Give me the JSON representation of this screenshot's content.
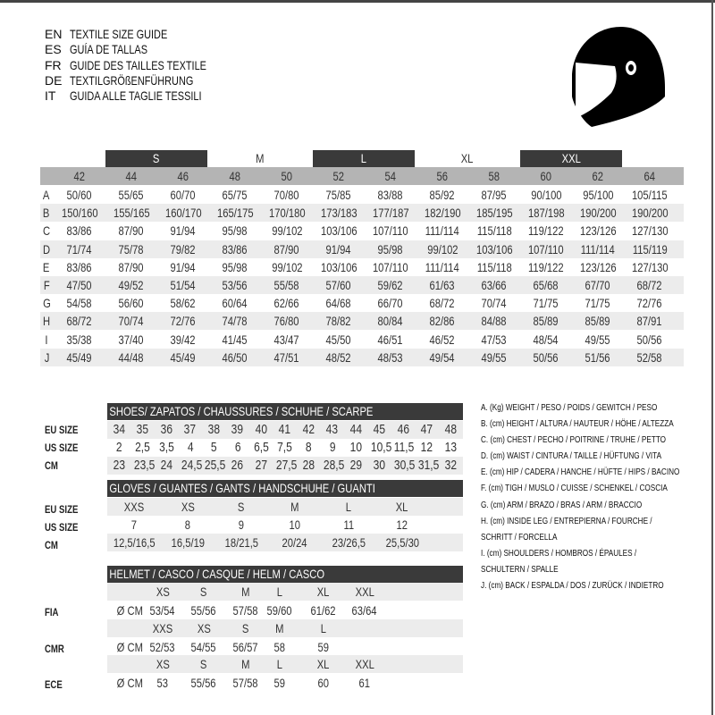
{
  "titles": [
    {
      "code": "EN",
      "text": "TEXTILE SIZE GUIDE"
    },
    {
      "code": "ES",
      "text": "GUÍA DE TALLAS"
    },
    {
      "code": "FR",
      "text": "GUIDE DES TAILLES TEXTILE"
    },
    {
      "code": "DE",
      "text": "TEXTILGRÖßENFÜHRUNG"
    },
    {
      "code": "IT",
      "text": "GUIDA ALLE TAGLIE TESSILI"
    }
  ],
  "icon": "helmet-icon",
  "textile": {
    "size_groups": [
      "S",
      "M",
      "L",
      "XL",
      "XXL"
    ],
    "sizes": [
      "42",
      "44",
      "46",
      "48",
      "50",
      "52",
      "54",
      "56",
      "58",
      "60",
      "62",
      "64"
    ],
    "rows": [
      {
        "label": "A",
        "values": [
          "50/60",
          "55/65",
          "60/70",
          "65/75",
          "70/80",
          "75/85",
          "83/88",
          "85/92",
          "87/95",
          "90/100",
          "95/100",
          "105/115"
        ]
      },
      {
        "label": "B",
        "values": [
          "150/160",
          "155/165",
          "160/170",
          "165/175",
          "170/180",
          "173/183",
          "177/187",
          "182/190",
          "185/195",
          "187/198",
          "190/200",
          "190/200"
        ]
      },
      {
        "label": "C",
        "values": [
          "83/86",
          "87/90",
          "91/94",
          "95/98",
          "99/102",
          "103/106",
          "107/110",
          "111/114",
          "115/118",
          "119/122",
          "123/126",
          "127/130"
        ]
      },
      {
        "label": "D",
        "values": [
          "71/74",
          "75/78",
          "79/82",
          "83/86",
          "87/90",
          "91/94",
          "95/98",
          "99/102",
          "103/106",
          "107/110",
          "111/114",
          "115/119"
        ]
      },
      {
        "label": "E",
        "values": [
          "83/86",
          "87/90",
          "91/94",
          "95/98",
          "99/102",
          "103/106",
          "107/110",
          "111/114",
          "115/118",
          "119/122",
          "123/126",
          "127/130"
        ]
      },
      {
        "label": "F",
        "values": [
          "47/50",
          "49/52",
          "51/54",
          "53/56",
          "55/58",
          "57/60",
          "59/62",
          "61/63",
          "63/66",
          "65/68",
          "67/70",
          "68/72"
        ]
      },
      {
        "label": "G",
        "values": [
          "54/58",
          "56/60",
          "58/62",
          "60/64",
          "62/66",
          "64/68",
          "66/70",
          "68/72",
          "70/74",
          "71/75",
          "71/75",
          "72/76"
        ]
      },
      {
        "label": "H",
        "values": [
          "68/72",
          "70/74",
          "72/76",
          "74/78",
          "76/80",
          "78/82",
          "80/84",
          "82/86",
          "84/88",
          "85/89",
          "85/89",
          "87/91"
        ]
      },
      {
        "label": "I",
        "values": [
          "35/38",
          "37/40",
          "39/42",
          "41/45",
          "43/47",
          "45/50",
          "46/51",
          "46/52",
          "47/53",
          "48/54",
          "49/55",
          "50/56"
        ]
      },
      {
        "label": "J",
        "values": [
          "45/49",
          "44/48",
          "45/49",
          "46/50",
          "47/51",
          "48/52",
          "48/53",
          "49/54",
          "49/55",
          "50/56",
          "51/56",
          "52/58"
        ]
      }
    ]
  },
  "shoes": {
    "title": "SHOES/ ZAPATOS / CHAUSSURES / SCHUHE / SCARPE",
    "rows": [
      {
        "label": "EU SIZE",
        "values": [
          "34",
          "35",
          "36",
          "37",
          "38",
          "39",
          "40",
          "41",
          "42",
          "43",
          "44",
          "45",
          "46",
          "47",
          "48"
        ]
      },
      {
        "label": "US SIZE",
        "values": [
          "2",
          "2,5",
          "3,5",
          "4",
          "5",
          "6",
          "6,5",
          "7,5",
          "8",
          "9",
          "10",
          "10,5",
          "11,5",
          "12",
          "13"
        ]
      },
      {
        "label": "CM",
        "values": [
          "23",
          "23,5",
          "24",
          "24,5",
          "25,5",
          "26",
          "27",
          "27,5",
          "28",
          "28,5",
          "29",
          "30",
          "30,5",
          "31,5",
          "32"
        ]
      }
    ]
  },
  "gloves": {
    "title": "GLOVES / GUANTES / GANTS / HANDSCHUHE / GUANTI",
    "rows": [
      {
        "label": "EU SIZE",
        "values": [
          "XXS",
          "XS",
          "S",
          "M",
          "L",
          "XL"
        ]
      },
      {
        "label": "US SIZE",
        "values": [
          "7",
          "8",
          "9",
          "10",
          "11",
          "12"
        ]
      },
      {
        "label": "CM",
        "values": [
          "12,5/16,5",
          "16,5/19",
          "18/21,5",
          "20/24",
          "23/26,5",
          "25,5/30"
        ]
      }
    ]
  },
  "helmet": {
    "title": "HELMET / CASCO / CASQUE / HELM / CASCO",
    "unit": "Ø CM",
    "standards": [
      {
        "label": "FIA",
        "sizes": [
          "XS",
          "S",
          "M",
          "L",
          "XL",
          "XXL"
        ],
        "values": [
          "53/54",
          "55/56",
          "57/58",
          "59/60",
          "61/62",
          "63/64"
        ]
      },
      {
        "label": "CMR",
        "sizes": [
          "XXS",
          "XS",
          "S",
          "M",
          "L"
        ],
        "values": [
          "52/53",
          "54/55",
          "56/57",
          "58",
          "59"
        ]
      },
      {
        "label": "ECE",
        "sizes": [
          "XS",
          "S",
          "M",
          "L",
          "XL",
          "XXL"
        ],
        "values": [
          "53",
          "55/56",
          "57/58",
          "59",
          "60",
          "61"
        ]
      }
    ]
  },
  "legend": [
    "A. (Kg) WEIGHT / PESO / POIDS / GEWITCH / PESO",
    "B. (cm) HEIGHT / ALTURA / HAUTEUR / HÖHE / ALTEZZA",
    "C. (cm) CHEST / PECHO / POITRINE / TRUHE / PETTO",
    "D. (cm) WAIST / CINTURA / TAILLE / HÜFTUNG / VITA",
    "E. (cm) HIP / CADERA / HANCHE / HÜFTE / HIPS /  BACINO",
    "F.  (cm) TIGH / MUSLO / CUISSE / SCHENKEL / COSCIA",
    "G. (cm) ARM  / BRAZO / BRAS / ARM / BRACCIO",
    "H. (cm) INSIDE LEG / ENTREPIERNA / FOURCHE /",
    "SCHRITT / FORCELLA",
    "I.  (cm) SHOULDERS / HOMBROS / ÉPAULES /",
    "SCHULTERN / SPALLE",
    "J. (cm) BACK / ESPALDA / DOS / ZURÜCK / INDIETRO"
  ]
}
